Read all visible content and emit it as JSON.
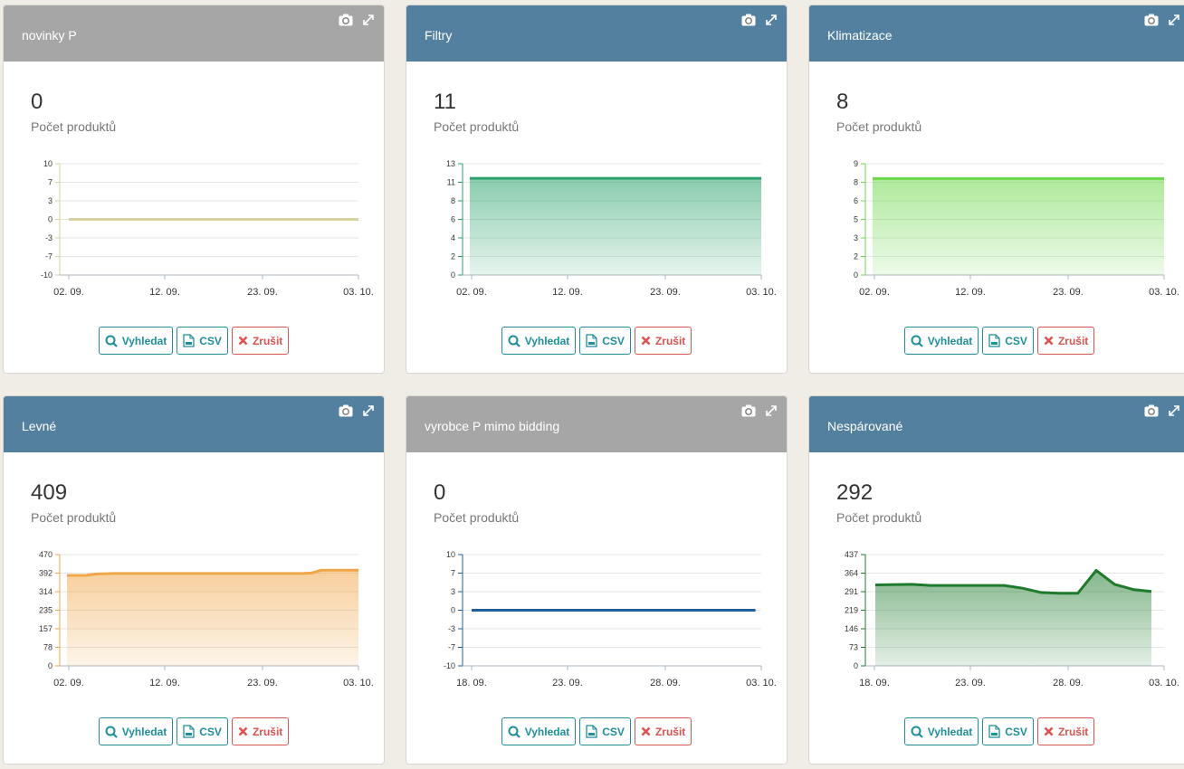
{
  "colors": {
    "header_blue": "#53809f",
    "header_gray": "#a6a6a6",
    "accent_teal": "#1e8e9a",
    "danger_red": "#d9534f"
  },
  "icons": {
    "camera": "camera-icon",
    "expand": "expand-icon",
    "search": "search-icon",
    "csv": "file-icon",
    "cancel": "close-icon"
  },
  "buttons": {
    "search": "Vyhledat",
    "csv": "CSV",
    "cancel": "Zrušit"
  },
  "widgets": [
    {
      "title": "novinky P",
      "header_color": "#a6a6a6",
      "value": "0",
      "label": "Počet produktů"
    },
    {
      "title": "Filtry",
      "header_color": "#53809f",
      "value": "11",
      "label": "Počet produktů"
    },
    {
      "title": "Klimatizace",
      "header_color": "#53809f",
      "value": "8",
      "label": "Počet produktů"
    },
    {
      "title": "Levné",
      "header_color": "#53809f",
      "value": "409",
      "label": "Počet produktů"
    },
    {
      "title": "vyrobce P mimo bidding",
      "header_color": "#a6a6a6",
      "value": "0",
      "label": "Počet produktů"
    },
    {
      "title": "Nespárované",
      "header_color": "#53809f",
      "value": "292",
      "label": "Počet produktů"
    }
  ],
  "chart_data": [
    {
      "type": "line",
      "x_ticks": [
        "02. 09.",
        "12. 09.",
        "23. 09.",
        "03. 10."
      ],
      "y_ticks": [
        "10",
        "7",
        "3",
        "0",
        "-3",
        "-7",
        "-10"
      ],
      "ylim": [
        -10,
        10
      ],
      "x": [
        0,
        31
      ],
      "series": [
        {
          "values": [
            0,
            0
          ],
          "color": "#d6d3a0"
        }
      ],
      "fill": false,
      "grid": true
    },
    {
      "type": "area",
      "x_ticks": [
        "02. 09.",
        "12. 09.",
        "23. 09.",
        "03. 10."
      ],
      "y_ticks": [
        "13",
        "11",
        "8",
        "6",
        "4",
        "2",
        "0"
      ],
      "ylim": [
        0,
        13
      ],
      "x": [
        0,
        31
      ],
      "series": [
        {
          "values": [
            11.3,
            11.3
          ],
          "color": "#2aa26b"
        }
      ],
      "fill": true,
      "grid": true
    },
    {
      "type": "area",
      "x_ticks": [
        "02. 09.",
        "12. 09.",
        "23. 09.",
        "03. 10."
      ],
      "y_ticks": [
        "9",
        "8",
        "6",
        "5",
        "3",
        "2",
        "0"
      ],
      "ylim": [
        0,
        9
      ],
      "x": [
        0,
        31
      ],
      "series": [
        {
          "values": [
            7.8,
            7.8
          ],
          "color": "#6cd84a"
        }
      ],
      "fill": true,
      "grid": true
    },
    {
      "type": "area",
      "x_ticks": [
        "02. 09.",
        "12. 09.",
        "23. 09.",
        "03. 10."
      ],
      "y_ticks": [
        "470",
        "392",
        "314",
        "235",
        "157",
        "78",
        "0"
      ],
      "ylim": [
        0,
        470
      ],
      "x": [
        0,
        2,
        3,
        5,
        25,
        26,
        27,
        31
      ],
      "series": [
        {
          "values": [
            382,
            382,
            388,
            390,
            390,
            392,
            404,
            404
          ],
          "color": "#f0a74a"
        }
      ],
      "fill": true,
      "grid": true
    },
    {
      "type": "line",
      "x_ticks": [
        "18. 09.",
        "23. 09.",
        "28. 09.",
        "03. 10."
      ],
      "y_ticks": [
        "10",
        "7",
        "3",
        "0",
        "-3",
        "-7",
        "-10"
      ],
      "ylim": [
        -10,
        10
      ],
      "x": [
        0,
        14.7
      ],
      "series": [
        {
          "values": [
            0,
            0
          ],
          "color": "#1f5f9a"
        }
      ],
      "fill": false,
      "grid": true
    },
    {
      "type": "area",
      "x_ticks": [
        "18. 09.",
        "23. 09.",
        "28. 09.",
        "03. 10."
      ],
      "y_ticks": [
        "437",
        "364",
        "291",
        "219",
        "146",
        "73",
        "0"
      ],
      "ylim": [
        0,
        437
      ],
      "x": [
        0,
        2,
        3,
        7,
        8,
        9,
        10,
        11,
        12,
        13,
        13.5,
        14,
        15
      ],
      "series": [
        {
          "values": [
            318,
            320,
            316,
            316,
            305,
            288,
            285,
            285,
            375,
            320,
            310,
            300,
            292
          ],
          "color": "#1e7a2c"
        }
      ],
      "fill": true,
      "grid": true
    }
  ]
}
